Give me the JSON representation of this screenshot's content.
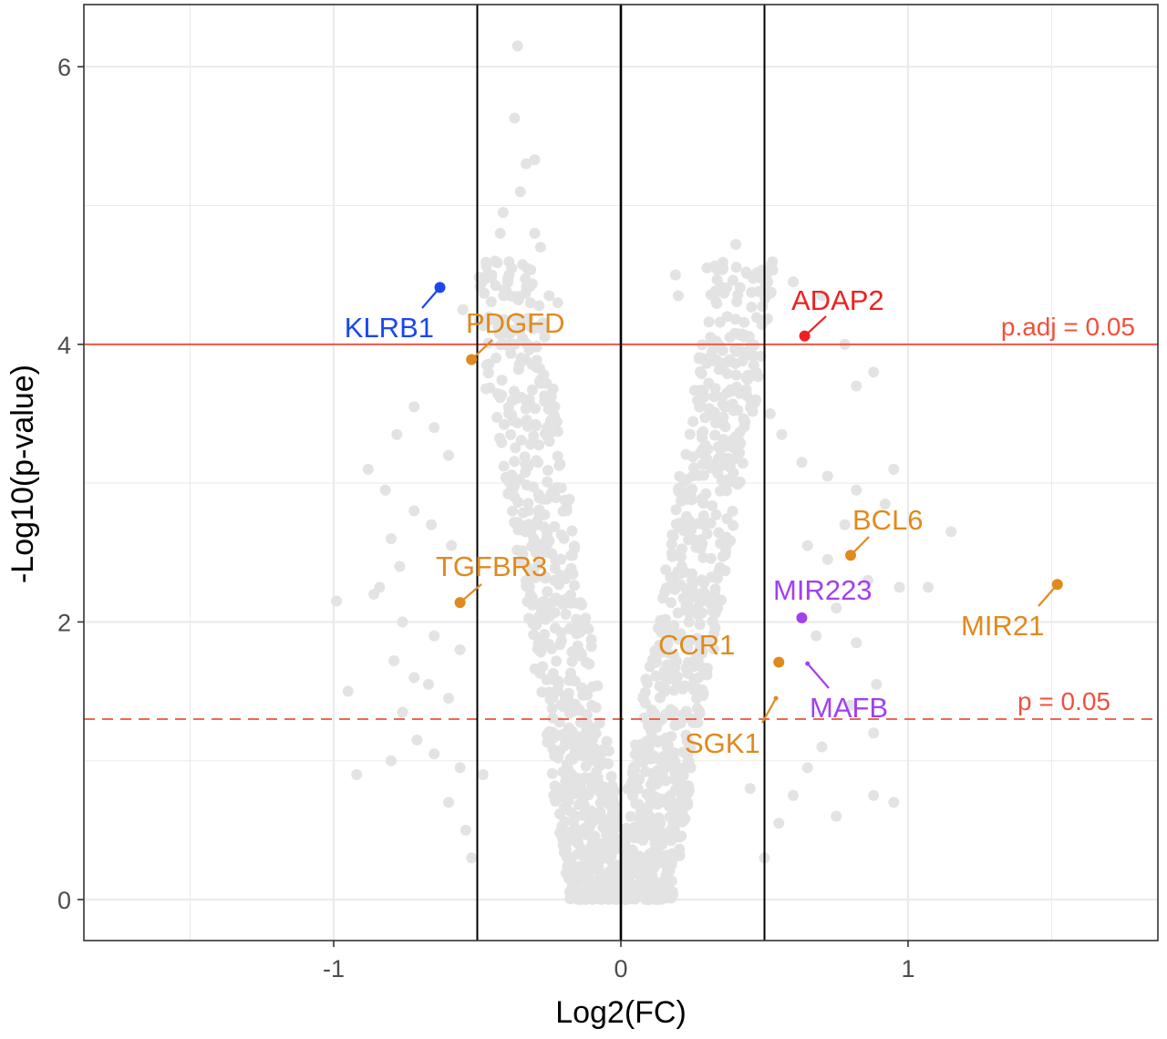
{
  "chart_data": {
    "type": "scatter",
    "title": "",
    "xlabel": "Log2(FC)",
    "ylabel": "-Log10(p-value)",
    "xlim": [
      -1.88,
      1.88
    ],
    "ylim": [
      -0.3,
      6.5
    ],
    "x_ticks": [
      -1,
      0,
      1
    ],
    "y_ticks": [
      0,
      2,
      4,
      6
    ],
    "x_tick_labels": [
      "-1",
      "0",
      "1"
    ],
    "y_tick_labels": [
      "0",
      "2",
      "4",
      "6"
    ],
    "grid": true,
    "legend": "none",
    "background_point_color": "#e3e3e3",
    "vertical_lines": [
      -0.5,
      0,
      0.5
    ],
    "thresholds": [
      {
        "name": "adjusted-threshold",
        "label": "p.adj = 0.05",
        "y": 4.0,
        "style": "solid",
        "color": "#f0503c"
      },
      {
        "name": "p-threshold",
        "label": "p = 0.05",
        "y": 1.3,
        "style": "dashed",
        "color": "#f0503c"
      }
    ],
    "highlighted_genes": [
      {
        "label": "KLRB1",
        "x": -0.63,
        "y": 4.41,
        "color": "#1a47f0"
      },
      {
        "label": "PDGFD",
        "x": -0.52,
        "y": 3.89,
        "color": "#e08a1e"
      },
      {
        "label": "ADAP2",
        "x": 0.64,
        "y": 4.06,
        "color": "#f02020"
      },
      {
        "label": "TGFBR3",
        "x": -0.56,
        "y": 2.14,
        "color": "#e08a1e"
      },
      {
        "label": "BCL6",
        "x": 0.8,
        "y": 2.48,
        "color": "#e08a1e"
      },
      {
        "label": "MIR223",
        "x": 0.63,
        "y": 2.03,
        "color": "#a040f0"
      },
      {
        "label": "MIR21",
        "x": 1.52,
        "y": 2.27,
        "color": "#e08a1e"
      },
      {
        "label": "CCR1",
        "x": 0.55,
        "y": 1.71,
        "color": "#e08a1e"
      },
      {
        "label": "MAFB",
        "x": 0.65,
        "y": 1.7,
        "color": "#a040f0"
      },
      {
        "label": "SGK1",
        "x": 0.54,
        "y": 1.45,
        "color": "#e08a1e"
      }
    ],
    "background_points": [
      [
        -0.36,
        6.15
      ],
      [
        -0.37,
        5.63
      ],
      [
        -0.35,
        5.1
      ],
      [
        -0.33,
        5.3
      ],
      [
        -0.3,
        5.33
      ],
      [
        -0.41,
        4.95
      ],
      [
        -0.42,
        4.8
      ],
      [
        -0.3,
        4.8
      ],
      [
        -0.28,
        4.7
      ],
      [
        -0.25,
        4.35
      ],
      [
        -0.22,
        4.3
      ],
      [
        -0.45,
        4.5
      ],
      [
        -0.55,
        4.25
      ],
      [
        -0.37,
        4.0
      ],
      [
        -0.47,
        3.68
      ],
      [
        -0.72,
        3.55
      ],
      [
        -0.78,
        3.35
      ],
      [
        -0.65,
        3.4
      ],
      [
        -0.6,
        3.2
      ],
      [
        -0.88,
        3.1
      ],
      [
        -0.82,
        2.95
      ],
      [
        -0.72,
        2.8
      ],
      [
        -0.66,
        2.7
      ],
      [
        -0.59,
        2.55
      ],
      [
        -0.8,
        2.6
      ],
      [
        -0.77,
        2.4
      ],
      [
        -0.84,
        2.25
      ],
      [
        -0.99,
        2.15
      ],
      [
        -0.86,
        2.2
      ],
      [
        -0.76,
        2.0
      ],
      [
        -0.65,
        1.9
      ],
      [
        -0.56,
        1.8
      ],
      [
        -0.79,
        1.72
      ],
      [
        -0.72,
        1.6
      ],
      [
        -0.67,
        1.55
      ],
      [
        -0.6,
        1.45
      ],
      [
        -0.76,
        1.35
      ],
      [
        -0.71,
        1.15
      ],
      [
        -0.65,
        1.05
      ],
      [
        -0.56,
        0.95
      ],
      [
        -0.48,
        0.9
      ],
      [
        -0.54,
        0.5
      ],
      [
        -0.8,
        1.0
      ],
      [
        -0.92,
        0.9
      ],
      [
        -0.6,
        0.7
      ],
      [
        0.4,
        4.72
      ],
      [
        0.3,
        4.55
      ],
      [
        0.19,
        4.5
      ],
      [
        0.2,
        4.35
      ],
      [
        0.37,
        4.2
      ],
      [
        0.48,
        4.38
      ],
      [
        0.6,
        4.45
      ],
      [
        0.7,
        4.35
      ],
      [
        0.78,
        4.0
      ],
      [
        0.88,
        3.8
      ],
      [
        0.82,
        3.7
      ],
      [
        0.52,
        3.5
      ],
      [
        0.47,
        3.6
      ],
      [
        0.43,
        3.45
      ],
      [
        0.56,
        3.35
      ],
      [
        0.63,
        3.15
      ],
      [
        0.72,
        3.05
      ],
      [
        0.82,
        2.95
      ],
      [
        0.92,
        2.85
      ],
      [
        0.95,
        3.1
      ],
      [
        0.78,
        2.7
      ],
      [
        0.65,
        2.55
      ],
      [
        0.72,
        2.45
      ],
      [
        0.86,
        2.3
      ],
      [
        0.97,
        2.25
      ],
      [
        1.07,
        2.25
      ],
      [
        1.15,
        2.65
      ],
      [
        0.75,
        2.1
      ],
      [
        0.68,
        1.9
      ],
      [
        0.82,
        1.85
      ],
      [
        0.89,
        1.55
      ],
      [
        0.8,
        1.4
      ],
      [
        0.88,
        1.2
      ],
      [
        0.7,
        1.1
      ],
      [
        0.65,
        0.95
      ],
      [
        0.95,
        0.7
      ],
      [
        0.88,
        0.75
      ],
      [
        0.6,
        0.75
      ],
      [
        0.55,
        0.55
      ],
      [
        0.75,
        0.6
      ],
      [
        0.45,
        0.8
      ],
      [
        -0.52,
        0.3
      ],
      [
        0.5,
        0.3
      ],
      [
        -0.95,
        1.5
      ],
      [
        0.38,
        4.05
      ]
    ]
  }
}
